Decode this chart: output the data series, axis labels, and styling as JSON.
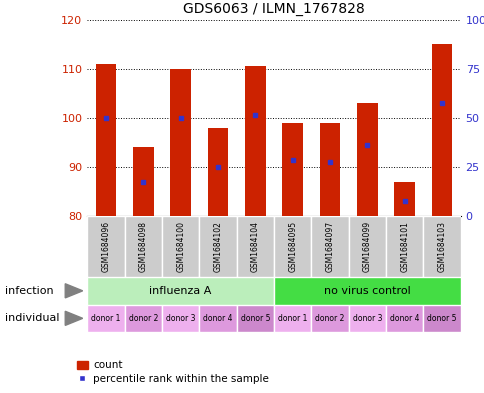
{
  "title": "GDS6063 / ILMN_1767828",
  "samples": [
    "GSM1684096",
    "GSM1684098",
    "GSM1684100",
    "GSM1684102",
    "GSM1684104",
    "GSM1684095",
    "GSM1684097",
    "GSM1684099",
    "GSM1684101",
    "GSM1684103"
  ],
  "count_values": [
    111.0,
    94.0,
    110.0,
    98.0,
    110.5,
    99.0,
    99.0,
    103.0,
    87.0,
    115.0
  ],
  "percentile_values": [
    100.0,
    87.0,
    100.0,
    90.0,
    100.5,
    91.5,
    91.0,
    94.5,
    83.0,
    103.0
  ],
  "bar_bottom": 80,
  "ylim_left": [
    80,
    120
  ],
  "ylim_right": [
    0,
    100
  ],
  "yticks_left": [
    80,
    90,
    100,
    110,
    120
  ],
  "yticks_right": [
    0,
    25,
    50,
    75,
    100
  ],
  "ytick_labels_right": [
    "0",
    "25",
    "50",
    "75",
    "100%"
  ],
  "bar_color": "#cc2200",
  "blue_color": "#3333cc",
  "infection_groups": [
    {
      "label": "influenza A",
      "start": 0,
      "end": 5,
      "color": "#bbeebb"
    },
    {
      "label": "no virus control",
      "start": 5,
      "end": 10,
      "color": "#44dd44"
    }
  ],
  "individual_labels": [
    "donor 1",
    "donor 2",
    "donor 3",
    "donor 4",
    "donor 5",
    "donor 1",
    "donor 2",
    "donor 3",
    "donor 4",
    "donor 5"
  ],
  "individual_colors": [
    "#eeb0ee",
    "#dd99dd",
    "#eeb0ee",
    "#dd99dd",
    "#cc88cc",
    "#eeb0ee",
    "#dd99dd",
    "#eeb0ee",
    "#dd99dd",
    "#cc88cc"
  ],
  "individual_color": "#dd88dd",
  "infection_label": "infection",
  "individual_label": "individual",
  "legend_count": "count",
  "legend_percentile": "percentile rank within the sample",
  "bg_color": "#ffffff",
  "sample_bg_color": "#cccccc",
  "left_label_color": "#cc2200",
  "right_label_color": "#3333cc"
}
